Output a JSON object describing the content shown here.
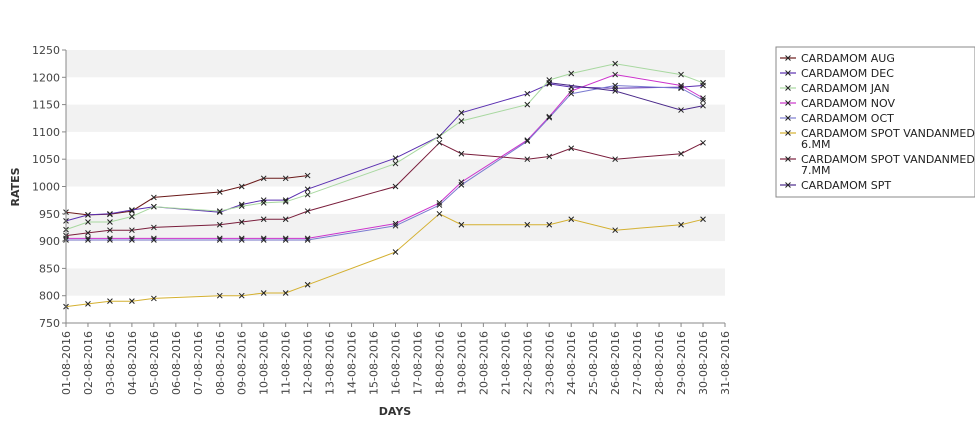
{
  "chart_data": {
    "type": "line",
    "xlabel": "DAYS",
    "ylabel": "RATES",
    "ylim": [
      750,
      1250
    ],
    "yticks": [
      750,
      800,
      850,
      900,
      950,
      1000,
      1050,
      1100,
      1150,
      1200,
      1250
    ],
    "categories": [
      "01-08-2016",
      "02-08-2016",
      "03-08-2016",
      "04-08-2016",
      "05-08-2016",
      "06-08-2016",
      "07-08-2016",
      "08-08-2016",
      "09-08-2016",
      "10-08-2016",
      "11-08-2016",
      "12-08-2016",
      "13-08-2016",
      "14-08-2016",
      "15-08-2016",
      "16-08-2016",
      "17-08-2016",
      "18-08-2016",
      "19-08-2016",
      "20-08-2016",
      "21-08-2016",
      "22-08-2016",
      "23-08-2016",
      "24-08-2016",
      "25-08-2016",
      "26-08-2016",
      "27-08-2016",
      "28-08-2016",
      "29-08-2016",
      "30-08-2016",
      "31-08-2016"
    ],
    "grid": "horizontal bands",
    "legend_position": "right",
    "series": [
      {
        "name": "CARDAMOM AUG",
        "color": "#6b1a1a",
        "points": [
          [
            "01-08-2016",
            953
          ],
          [
            "02-08-2016",
            948
          ],
          [
            "03-08-2016",
            949
          ],
          [
            "04-08-2016",
            955
          ],
          [
            "05-08-2016",
            980
          ],
          [
            "08-08-2016",
            990
          ],
          [
            "09-08-2016",
            1000
          ],
          [
            "10-08-2016",
            1015
          ],
          [
            "11-08-2016",
            1015
          ],
          [
            "12-08-2016",
            1020
          ]
        ]
      },
      {
        "name": "CARDAMOM DEC",
        "color": "#5a2fb0",
        "points": [
          [
            "01-08-2016",
            937
          ],
          [
            "02-08-2016",
            948
          ],
          [
            "03-08-2016",
            950
          ],
          [
            "04-08-2016",
            957
          ],
          [
            "05-08-2016",
            963
          ],
          [
            "08-08-2016",
            953
          ],
          [
            "09-08-2016",
            967
          ],
          [
            "10-08-2016",
            975
          ],
          [
            "11-08-2016",
            975
          ],
          [
            "12-08-2016",
            995
          ],
          [
            "16-08-2016",
            1052
          ],
          [
            "18-08-2016",
            1092
          ],
          [
            "19-08-2016",
            1135
          ],
          [
            "22-08-2016",
            1170
          ],
          [
            "23-08-2016",
            1188
          ],
          [
            "24-08-2016",
            1182
          ],
          [
            "26-08-2016",
            1180
          ],
          [
            "29-08-2016",
            1182
          ],
          [
            "30-08-2016",
            1185
          ]
        ]
      },
      {
        "name": "CARDAMOM JAN",
        "color": "#a8d8a0",
        "points": [
          [
            "01-08-2016",
            921
          ],
          [
            "02-08-2016",
            935
          ],
          [
            "03-08-2016",
            935
          ],
          [
            "04-08-2016",
            945
          ],
          [
            "05-08-2016",
            963
          ],
          [
            "08-08-2016",
            955
          ],
          [
            "09-08-2016",
            964
          ],
          [
            "10-08-2016",
            970
          ],
          [
            "11-08-2016",
            972
          ],
          [
            "12-08-2016",
            985
          ],
          [
            "16-08-2016",
            1042
          ],
          [
            "18-08-2016",
            1092
          ],
          [
            "19-08-2016",
            1120
          ],
          [
            "22-08-2016",
            1150
          ],
          [
            "23-08-2016",
            1195
          ],
          [
            "24-08-2016",
            1207
          ],
          [
            "26-08-2016",
            1225
          ],
          [
            "29-08-2016",
            1205
          ],
          [
            "30-08-2016",
            1190
          ]
        ]
      },
      {
        "name": "CARDAMOM NOV",
        "color": "#cc33cc",
        "points": [
          [
            "01-08-2016",
            905
          ],
          [
            "02-08-2016",
            905
          ],
          [
            "03-08-2016",
            905
          ],
          [
            "04-08-2016",
            905
          ],
          [
            "05-08-2016",
            905
          ],
          [
            "08-08-2016",
            905
          ],
          [
            "09-08-2016",
            905
          ],
          [
            "10-08-2016",
            905
          ],
          [
            "11-08-2016",
            905
          ],
          [
            "12-08-2016",
            905
          ],
          [
            "16-08-2016",
            932
          ],
          [
            "18-08-2016",
            970
          ],
          [
            "19-08-2016",
            1008
          ],
          [
            "22-08-2016",
            1085
          ],
          [
            "23-08-2016",
            1128
          ],
          [
            "24-08-2016",
            1175
          ],
          [
            "26-08-2016",
            1205
          ],
          [
            "29-08-2016",
            1185
          ],
          [
            "30-08-2016",
            1162
          ]
        ]
      },
      {
        "name": "CARDAMOM OCT",
        "color": "#7a7ad0",
        "points": [
          [
            "01-08-2016",
            902
          ],
          [
            "02-08-2016",
            902
          ],
          [
            "03-08-2016",
            902
          ],
          [
            "04-08-2016",
            902
          ],
          [
            "05-08-2016",
            902
          ],
          [
            "08-08-2016",
            902
          ],
          [
            "09-08-2016",
            902
          ],
          [
            "10-08-2016",
            902
          ],
          [
            "11-08-2016",
            902
          ],
          [
            "12-08-2016",
            902
          ],
          [
            "16-08-2016",
            928
          ],
          [
            "18-08-2016",
            966
          ],
          [
            "19-08-2016",
            1003
          ],
          [
            "22-08-2016",
            1083
          ],
          [
            "23-08-2016",
            1126
          ],
          [
            "24-08-2016",
            1170
          ],
          [
            "26-08-2016",
            1185
          ],
          [
            "29-08-2016",
            1180
          ],
          [
            "30-08-2016",
            1158
          ]
        ]
      },
      {
        "name": "CARDAMOM SPOT VANDANMEDU 6.MM",
        "color": "#d4b030",
        "points": [
          [
            "01-08-2016",
            780
          ],
          [
            "02-08-2016",
            785
          ],
          [
            "03-08-2016",
            790
          ],
          [
            "04-08-2016",
            790
          ],
          [
            "05-08-2016",
            795
          ],
          [
            "08-08-2016",
            800
          ],
          [
            "09-08-2016",
            800
          ],
          [
            "10-08-2016",
            805
          ],
          [
            "11-08-2016",
            805
          ],
          [
            "12-08-2016",
            820
          ],
          [
            "16-08-2016",
            880
          ],
          [
            "18-08-2016",
            950
          ],
          [
            "19-08-2016",
            930
          ],
          [
            "22-08-2016",
            930
          ],
          [
            "23-08-2016",
            930
          ],
          [
            "24-08-2016",
            940
          ],
          [
            "26-08-2016",
            920
          ],
          [
            "29-08-2016",
            930
          ],
          [
            "30-08-2016",
            940
          ]
        ]
      },
      {
        "name": "CARDAMOM SPOT VANDANMEDU 7.MM",
        "color": "#7a1e3c",
        "points": [
          [
            "01-08-2016",
            910
          ],
          [
            "02-08-2016",
            915
          ],
          [
            "03-08-2016",
            920
          ],
          [
            "04-08-2016",
            920
          ],
          [
            "05-08-2016",
            925
          ],
          [
            "08-08-2016",
            930
          ],
          [
            "09-08-2016",
            935
          ],
          [
            "10-08-2016",
            940
          ],
          [
            "11-08-2016",
            940
          ],
          [
            "12-08-2016",
            955
          ],
          [
            "16-08-2016",
            1000
          ],
          [
            "18-08-2016",
            1080
          ],
          [
            "19-08-2016",
            1060
          ],
          [
            "22-08-2016",
            1050
          ],
          [
            "23-08-2016",
            1055
          ],
          [
            "24-08-2016",
            1070
          ],
          [
            "26-08-2016",
            1050
          ],
          [
            "29-08-2016",
            1060
          ],
          [
            "30-08-2016",
            1080
          ]
        ]
      },
      {
        "name": "CARDAMOM SPT",
        "color": "#4b2a8a",
        "points": [
          [
            "23-08-2016",
            1190
          ],
          [
            "26-08-2016",
            1175
          ],
          [
            "29-08-2016",
            1140
          ],
          [
            "30-08-2016",
            1148
          ]
        ]
      }
    ]
  }
}
